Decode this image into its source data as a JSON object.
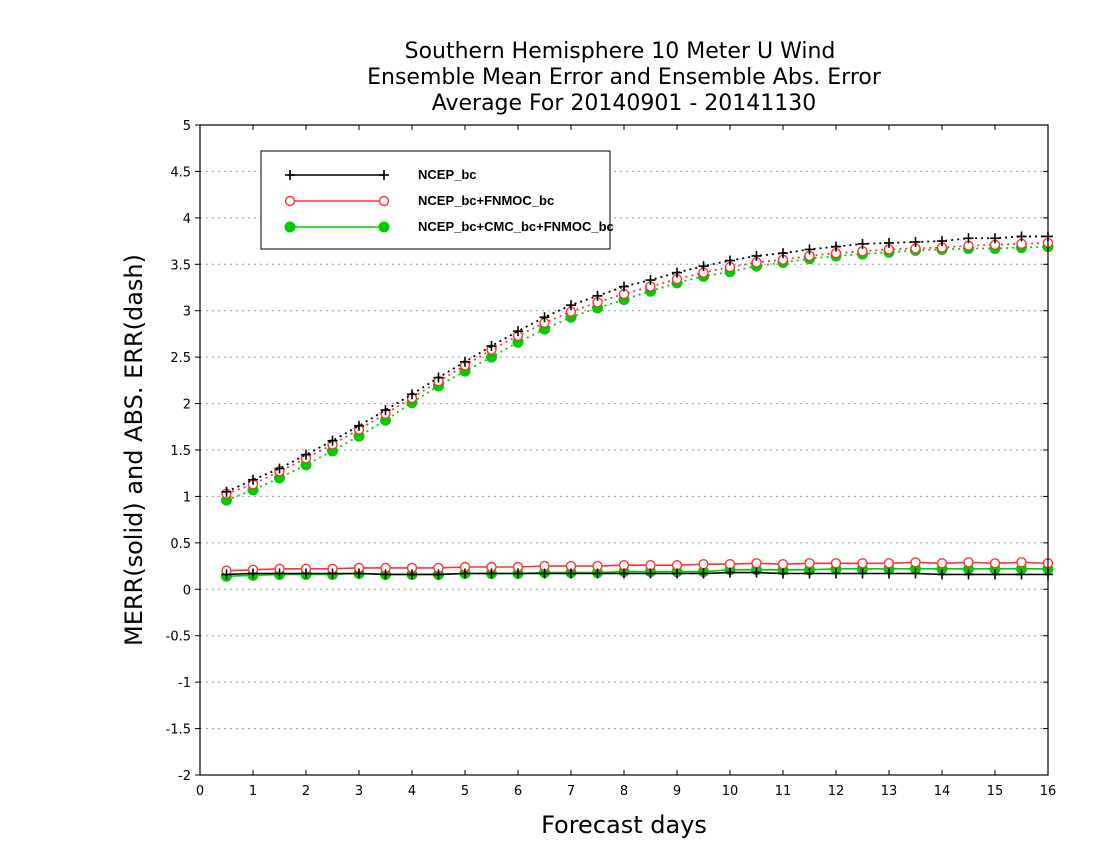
{
  "chart_data": {
    "type": "line",
    "title": [
      "Southern Hemisphere 10 Meter U Wind",
      "Ensemble Mean Error and Ensemble Abs. Error",
      "Average For 20140901 - 20141130"
    ],
    "xlabel": "Forecast days",
    "ylabel": "MERR(solid) and ABS. ERR(dash)",
    "xlim": [
      0,
      16
    ],
    "ylim": [
      -2,
      5
    ],
    "xticks": [
      0,
      1,
      2,
      3,
      4,
      5,
      6,
      7,
      8,
      9,
      10,
      11,
      12,
      13,
      14,
      15,
      16
    ],
    "yticks": [
      -2,
      -1.5,
      -1,
      -0.5,
      0,
      0.5,
      1,
      1.5,
      2,
      2.5,
      3,
      3.5,
      4,
      4.5,
      5
    ],
    "ytick_labels": [
      "-2",
      "-1.5",
      "-1",
      "-0.5",
      "0",
      "0.5",
      "1",
      "1.5",
      "2",
      "2.5",
      "3",
      "3.5",
      "4",
      "4.5",
      "5"
    ],
    "grid": "horizontal dotted",
    "legend_position": "top-left",
    "x": [
      0.5,
      1,
      1.5,
      2,
      2.5,
      3,
      3.5,
      4,
      4.5,
      5,
      5.5,
      6,
      6.5,
      7,
      7.5,
      8,
      8.5,
      9,
      9.5,
      10,
      10.5,
      11,
      11.5,
      12,
      12.5,
      13,
      13.5,
      14,
      14.5,
      15,
      15.5,
      16
    ],
    "series": [
      {
        "name": "NCEP_bc",
        "color": "#000000",
        "marker": "plus",
        "merr": [
          0.16,
          0.17,
          0.17,
          0.17,
          0.17,
          0.17,
          0.16,
          0.16,
          0.16,
          0.17,
          0.17,
          0.17,
          0.17,
          0.17,
          0.17,
          0.17,
          0.17,
          0.17,
          0.17,
          0.18,
          0.18,
          0.17,
          0.17,
          0.17,
          0.17,
          0.17,
          0.17,
          0.16,
          0.16,
          0.16,
          0.16,
          0.16
        ],
        "abs_err": [
          1.05,
          1.18,
          1.3,
          1.45,
          1.6,
          1.76,
          1.93,
          2.1,
          2.28,
          2.45,
          2.62,
          2.78,
          2.93,
          3.06,
          3.16,
          3.26,
          3.33,
          3.41,
          3.48,
          3.54,
          3.59,
          3.62,
          3.66,
          3.69,
          3.72,
          3.73,
          3.74,
          3.75,
          3.78,
          3.78,
          3.8,
          3.8
        ]
      },
      {
        "name": "NCEP_bc+FNMOC_bc",
        "color": "#ff3333",
        "marker": "circle",
        "merr": [
          0.2,
          0.21,
          0.22,
          0.22,
          0.22,
          0.23,
          0.23,
          0.23,
          0.23,
          0.24,
          0.24,
          0.24,
          0.25,
          0.25,
          0.25,
          0.26,
          0.26,
          0.26,
          0.27,
          0.27,
          0.28,
          0.27,
          0.28,
          0.28,
          0.28,
          0.28,
          0.29,
          0.28,
          0.29,
          0.28,
          0.29,
          0.28
        ],
        "abs_err": [
          1.03,
          1.13,
          1.27,
          1.41,
          1.56,
          1.72,
          1.89,
          2.06,
          2.24,
          2.41,
          2.58,
          2.73,
          2.87,
          2.99,
          3.09,
          3.18,
          3.26,
          3.34,
          3.41,
          3.47,
          3.52,
          3.55,
          3.59,
          3.62,
          3.64,
          3.66,
          3.67,
          3.68,
          3.7,
          3.71,
          3.72,
          3.73
        ]
      },
      {
        "name": "NCEP_bc+CMC_bc+FNMOC_bc",
        "color": "#00cc00",
        "marker": "filled-circle",
        "merr": [
          0.14,
          0.15,
          0.16,
          0.16,
          0.16,
          0.17,
          0.16,
          0.16,
          0.16,
          0.17,
          0.17,
          0.17,
          0.18,
          0.18,
          0.18,
          0.19,
          0.19,
          0.19,
          0.19,
          0.21,
          0.21,
          0.21,
          0.21,
          0.22,
          0.22,
          0.22,
          0.22,
          0.22,
          0.22,
          0.22,
          0.22,
          0.22
        ],
        "abs_err": [
          0.96,
          1.07,
          1.2,
          1.34,
          1.49,
          1.65,
          1.82,
          2.01,
          2.19,
          2.35,
          2.5,
          2.66,
          2.8,
          2.93,
          3.03,
          3.12,
          3.21,
          3.3,
          3.37,
          3.42,
          3.48,
          3.52,
          3.56,
          3.59,
          3.61,
          3.63,
          3.65,
          3.66,
          3.67,
          3.67,
          3.68,
          3.69
        ]
      }
    ]
  }
}
